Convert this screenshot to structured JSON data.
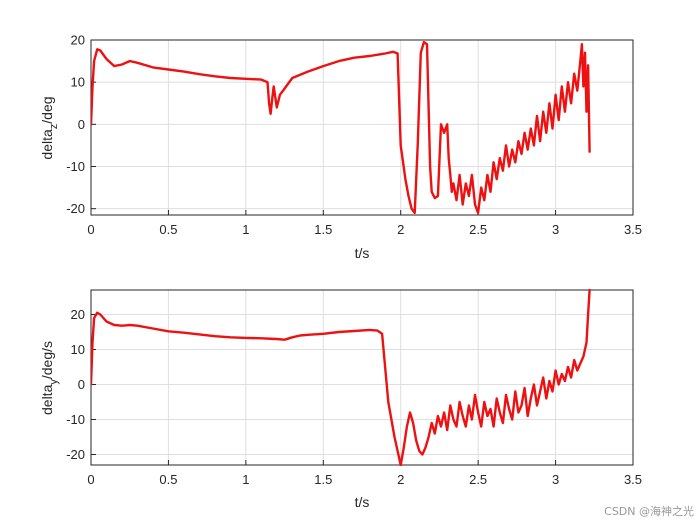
{
  "colors": {
    "series": "#ee1111",
    "grid": "#dfdfdf",
    "axis": "#262626"
  },
  "watermark": "CSDN @海神之光",
  "chart_data": [
    {
      "type": "line",
      "xlabel": "t/s",
      "ylabel_main": "delta",
      "ylabel_sub": "z",
      "ylabel_tail": "/deg",
      "xlim": [
        0,
        3.5
      ],
      "ylim": [
        -21.5,
        20
      ],
      "xticks": [
        0,
        0.5,
        1,
        1.5,
        2,
        2.5,
        3,
        3.5
      ],
      "xtick_labels": [
        "0",
        "0.5",
        "1",
        "1.5",
        "2",
        "2.5",
        "3",
        "3.5"
      ],
      "yticks": [
        -20,
        -10,
        0,
        10,
        20
      ],
      "ytick_labels": [
        "-20",
        "-10",
        "0",
        "10",
        "20"
      ],
      "grid": true,
      "series": [
        {
          "x": [
            0,
            0.01,
            0.02,
            0.04,
            0.06,
            0.1,
            0.15,
            0.2,
            0.25,
            0.3,
            0.4,
            0.5,
            0.6,
            0.7,
            0.8,
            0.9,
            1.0,
            1.1,
            1.14,
            1.15,
            1.16,
            1.17,
            1.18,
            1.2,
            1.22,
            1.25,
            1.3,
            1.4,
            1.5,
            1.6,
            1.7,
            1.8,
            1.9,
            1.95,
            1.98,
            2.0,
            2.03,
            2.05,
            2.07,
            2.09,
            2.11,
            2.13,
            2.15,
            2.17,
            2.19,
            2.2,
            2.22,
            2.24,
            2.26,
            2.28,
            2.3,
            2.31,
            2.32,
            2.33,
            2.34,
            2.36,
            2.38,
            2.4,
            2.42,
            2.44,
            2.46,
            2.48,
            2.5,
            2.52,
            2.54,
            2.56,
            2.58,
            2.6,
            2.62,
            2.64,
            2.66,
            2.68,
            2.7,
            2.72,
            2.74,
            2.76,
            2.78,
            2.8,
            2.82,
            2.84,
            2.86,
            2.88,
            2.9,
            2.92,
            2.94,
            2.96,
            2.98,
            3.0,
            3.02,
            3.04,
            3.06,
            3.08,
            3.1,
            3.12,
            3.14,
            3.16,
            3.17,
            3.18,
            3.19,
            3.2,
            3.21,
            3.22
          ],
          "y": [
            0,
            9,
            15,
            17.8,
            17.5,
            15.5,
            13.8,
            14.2,
            15,
            14.6,
            13.5,
            13,
            12.5,
            11.9,
            11.4,
            11,
            10.8,
            10.6,
            10,
            5,
            2.5,
            6,
            9,
            4,
            7,
            8.5,
            11,
            12.5,
            13.8,
            15,
            15.8,
            16.2,
            16.8,
            17.2,
            16.8,
            -5,
            -13,
            -17,
            -20,
            -21,
            -5,
            17,
            19.5,
            19,
            -10,
            -16,
            -17.5,
            -17,
            0,
            -2,
            0,
            -8,
            -12,
            -16,
            -14,
            -18,
            -12,
            -19,
            -14,
            -17,
            -12,
            -19,
            -21,
            -15,
            -18,
            -12,
            -16,
            -9,
            -13,
            -8,
            -11,
            -5,
            -10,
            -6,
            -9,
            -4,
            -7,
            -2,
            -6,
            -1,
            -5,
            2,
            -4,
            3,
            -2,
            5,
            -1,
            7,
            1,
            9,
            3,
            10,
            5,
            12,
            8,
            15,
            19,
            9,
            17,
            3,
            14,
            -6.5
          ]
        }
      ]
    },
    {
      "type": "line",
      "xlabel": "t/s",
      "ylabel_main": "delta",
      "ylabel_sub": "y",
      "ylabel_tail": "/deg/s",
      "xlim": [
        0,
        3.5
      ],
      "ylim": [
        -23,
        27
      ],
      "xticks": [
        0,
        0.5,
        1,
        1.5,
        2,
        2.5,
        3,
        3.5
      ],
      "xtick_labels": [
        "0",
        "0.5",
        "1",
        "1.5",
        "2",
        "2.5",
        "3",
        "3.5"
      ],
      "yticks": [
        -20,
        -10,
        0,
        10,
        20
      ],
      "ytick_labels": [
        "-20",
        "-10",
        "0",
        "10",
        "20"
      ],
      "grid": true,
      "series": [
        {
          "x": [
            0,
            0.01,
            0.02,
            0.04,
            0.06,
            0.1,
            0.15,
            0.2,
            0.25,
            0.3,
            0.4,
            0.5,
            0.6,
            0.7,
            0.8,
            0.9,
            1.0,
            1.1,
            1.2,
            1.25,
            1.3,
            1.35,
            1.4,
            1.5,
            1.6,
            1.7,
            1.8,
            1.85,
            1.88,
            1.92,
            1.96,
            2.0,
            2.02,
            2.04,
            2.06,
            2.08,
            2.1,
            2.12,
            2.14,
            2.16,
            2.18,
            2.2,
            2.22,
            2.24,
            2.26,
            2.28,
            2.3,
            2.32,
            2.34,
            2.36,
            2.38,
            2.4,
            2.42,
            2.44,
            2.46,
            2.48,
            2.5,
            2.52,
            2.54,
            2.56,
            2.58,
            2.6,
            2.62,
            2.64,
            2.66,
            2.68,
            2.7,
            2.72,
            2.74,
            2.76,
            2.78,
            2.8,
            2.82,
            2.84,
            2.86,
            2.88,
            2.9,
            2.92,
            2.94,
            2.96,
            2.98,
            3.0,
            3.02,
            3.04,
            3.06,
            3.08,
            3.1,
            3.12,
            3.14,
            3.16,
            3.18,
            3.2,
            3.21,
            3.22
          ],
          "y": [
            0,
            12,
            19,
            20.5,
            20,
            18,
            17,
            16.8,
            17,
            16.8,
            16,
            15.2,
            14.8,
            14.3,
            13.8,
            13.5,
            13.3,
            13.2,
            13,
            12.8,
            13.5,
            14,
            14.2,
            14.5,
            15,
            15.3,
            15.6,
            15.4,
            14.5,
            -5,
            -15,
            -23,
            -18,
            -12,
            -8,
            -11,
            -16,
            -19,
            -20,
            -18,
            -15,
            -11,
            -14,
            -9,
            -12,
            -8,
            -13,
            -6,
            -10,
            -12,
            -5,
            -9,
            -12,
            -6,
            -10,
            -3,
            -8,
            -12,
            -5,
            -9,
            -7,
            -12,
            -4,
            -8,
            -11,
            -3,
            -7,
            -10,
            -2,
            -8,
            -6,
            -1,
            -9,
            -4,
            0,
            -6,
            -2,
            2,
            -4,
            1,
            -2,
            4,
            0,
            3,
            1,
            5,
            2,
            7,
            4,
            6,
            8,
            12,
            20,
            27
          ]
        }
      ]
    }
  ]
}
